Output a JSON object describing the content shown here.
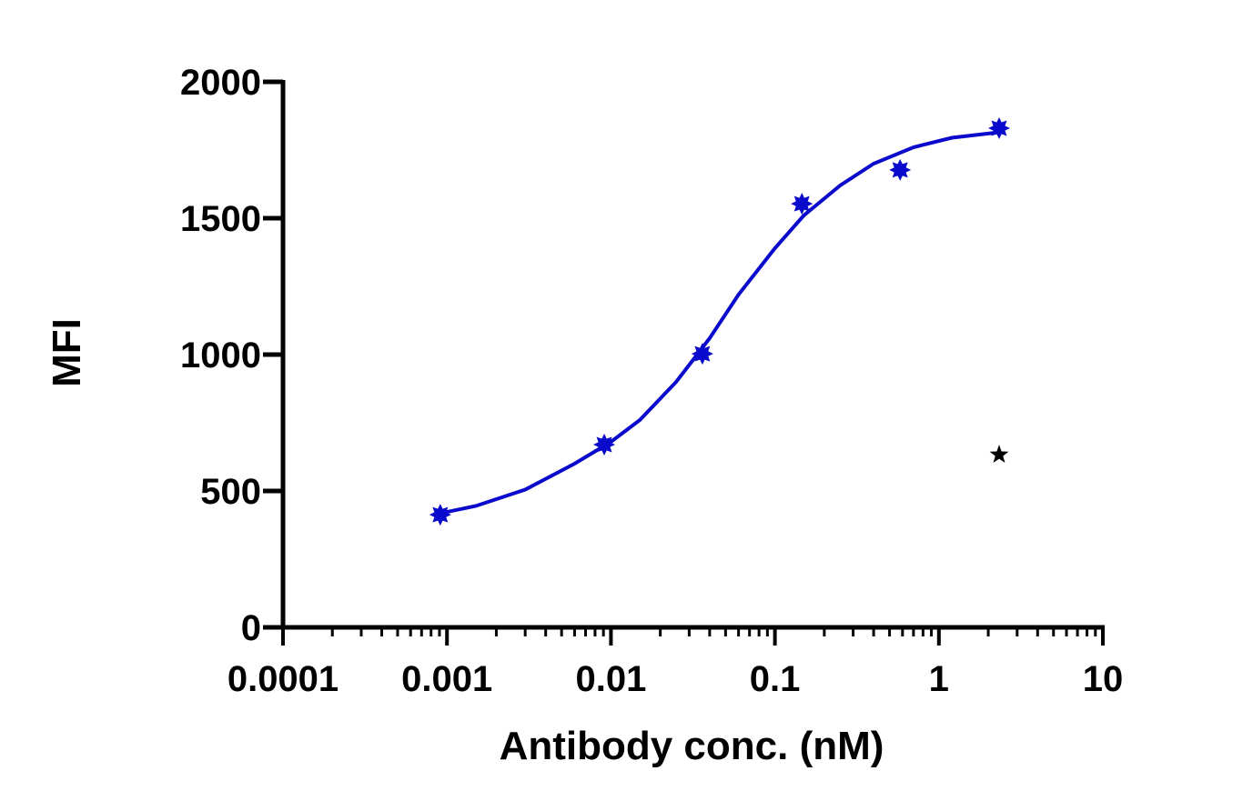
{
  "chart_data": {
    "type": "scatter",
    "xlabel": "Antibody conc. (nM)",
    "ylabel": "MFI",
    "xscale": "log",
    "xlim": [
      0.0001,
      10
    ],
    "ylim": [
      0,
      2000
    ],
    "xticks": [
      0.0001,
      0.001,
      0.01,
      0.1,
      1,
      10
    ],
    "xminorticks": [
      0.0002,
      0.0003,
      0.0004,
      0.0005,
      0.0006,
      0.0007,
      0.0008,
      0.0009,
      0.002,
      0.003,
      0.004,
      0.005,
      0.006,
      0.007,
      0.008,
      0.009,
      0.02,
      0.03,
      0.04,
      0.05,
      0.06,
      0.07,
      0.08,
      0.09,
      0.2,
      0.3,
      0.4,
      0.5,
      0.6,
      0.7,
      0.8,
      0.9,
      2,
      3,
      4,
      5,
      6,
      7,
      8,
      9
    ],
    "yticks": [
      0,
      500,
      1000,
      1500,
      2000
    ],
    "points": {
      "color": "#0a0acc",
      "x": [
        0.00091,
        0.0091,
        0.0361,
        0.146,
        0.58,
        2.33
      ],
      "values": [
        413,
        670,
        1003,
        1553,
        1677,
        1830
      ]
    },
    "fit": {
      "color": "#0a0acc",
      "x": [
        0.00091,
        0.0015,
        0.003,
        0.006,
        0.01,
        0.015,
        0.025,
        0.04,
        0.06,
        0.1,
        0.15,
        0.25,
        0.4,
        0.7,
        1.2,
        2.33
      ],
      "values": [
        418,
        445,
        505,
        600,
        680,
        760,
        900,
        1060,
        1220,
        1390,
        1510,
        1620,
        1700,
        1760,
        1795,
        1815
      ]
    },
    "marker": {
      "color": "#000000",
      "x": 2.33,
      "y": 633
    }
  }
}
